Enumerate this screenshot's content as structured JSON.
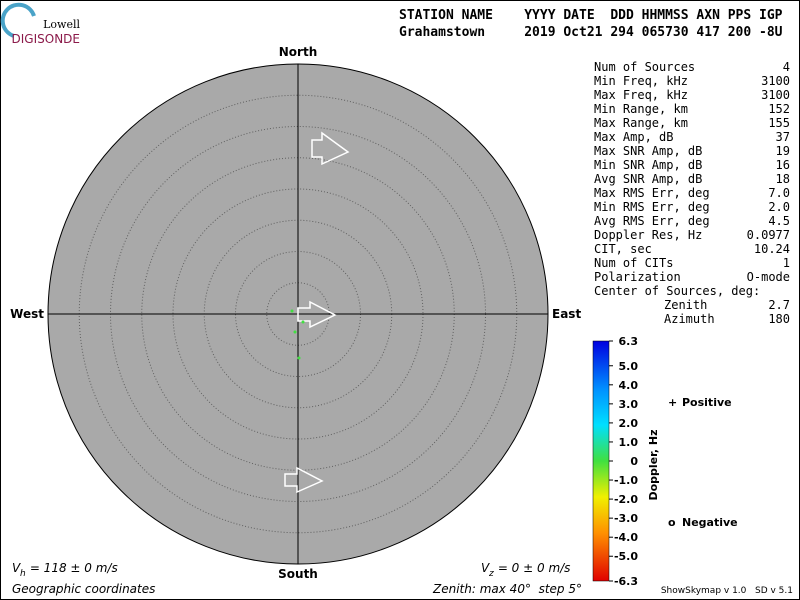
{
  "logo": {
    "top": "Lowell",
    "bottom": "DIGISONDE"
  },
  "header": {
    "labels": "STATION NAME    YYYY DATE  DDD HHMMSS AXN PPS IGP",
    "values": "Grahamstown     2019 Oct21 294 065730 417 200 -8U"
  },
  "stats": [
    [
      "Num of Sources",
      "4"
    ],
    [
      "Min Freq, kHz",
      "3100"
    ],
    [
      "Max Freq, kHz",
      "3100"
    ],
    [
      "Min Range, km",
      "152"
    ],
    [
      "Max Range, km",
      "155"
    ],
    [
      "Max Amp, dB",
      "37"
    ],
    [
      "Max SNR Amp, dB",
      "19"
    ],
    [
      "Min SNR Amp, dB",
      "16"
    ],
    [
      "Avg SNR Amp, dB",
      "18"
    ],
    [
      "Max RMS Err, deg",
      "7.0"
    ],
    [
      "Min RMS Err, deg",
      "2.0"
    ],
    [
      "Avg RMS Err, deg",
      "4.5"
    ],
    [
      "Doppler Res, Hz",
      "0.0977"
    ],
    [
      "CIT, sec",
      "10.24"
    ],
    [
      "Num of CITs",
      "1"
    ],
    [
      "Polarization",
      "O-mode"
    ]
  ],
  "center": {
    "title": "Center of Sources, deg:",
    "zenith_label": "Zenith",
    "zenith": "2.7",
    "azimuth_label": "Azimuth",
    "azimuth": "180"
  },
  "chart_data": {
    "type": "skymap",
    "directions": {
      "north": "North",
      "south": "South",
      "east": "East",
      "west": "West"
    },
    "colorbar": {
      "label": "Doppler, Hz",
      "ylim": [
        -6.3,
        6.3
      ],
      "yticks": [
        6.3,
        {
          "value": 5,
          "label": "5.0"
        },
        {
          "value": 4,
          "label": "4.0"
        },
        {
          "value": 3,
          "label": "3.0"
        },
        {
          "value": 2,
          "label": "2.0"
        },
        {
          "value": 1,
          "label": "1.0"
        },
        0,
        {
          "value": -1,
          "label": "-1.0"
        },
        {
          "value": -2,
          "label": "-2.0"
        },
        {
          "value": -3,
          "label": "-3.0"
        },
        {
          "value": -4,
          "label": "-4.0"
        },
        {
          "value": -5,
          "label": "-5.0"
        },
        -6.3
      ]
    },
    "legend": [
      {
        "marker": "+",
        "name": "Positive",
        "color": "#0000c8"
      },
      {
        "marker": "o",
        "name": "Negative",
        "color": "#e00000"
      }
    ]
  },
  "footer": {
    "vh": {
      "symbol": "V",
      "sub": "h",
      "text": " = 118 ± 0 m/s"
    },
    "vz": {
      "symbol": "V",
      "sub": "z",
      "text": " = 0 ± 0 m/s"
    },
    "coords": "Geographic coordinates",
    "zenith": "Zenith: max 40°  step 5°",
    "version": "ShowSkymap v 1.0   SD v 5.1"
  }
}
